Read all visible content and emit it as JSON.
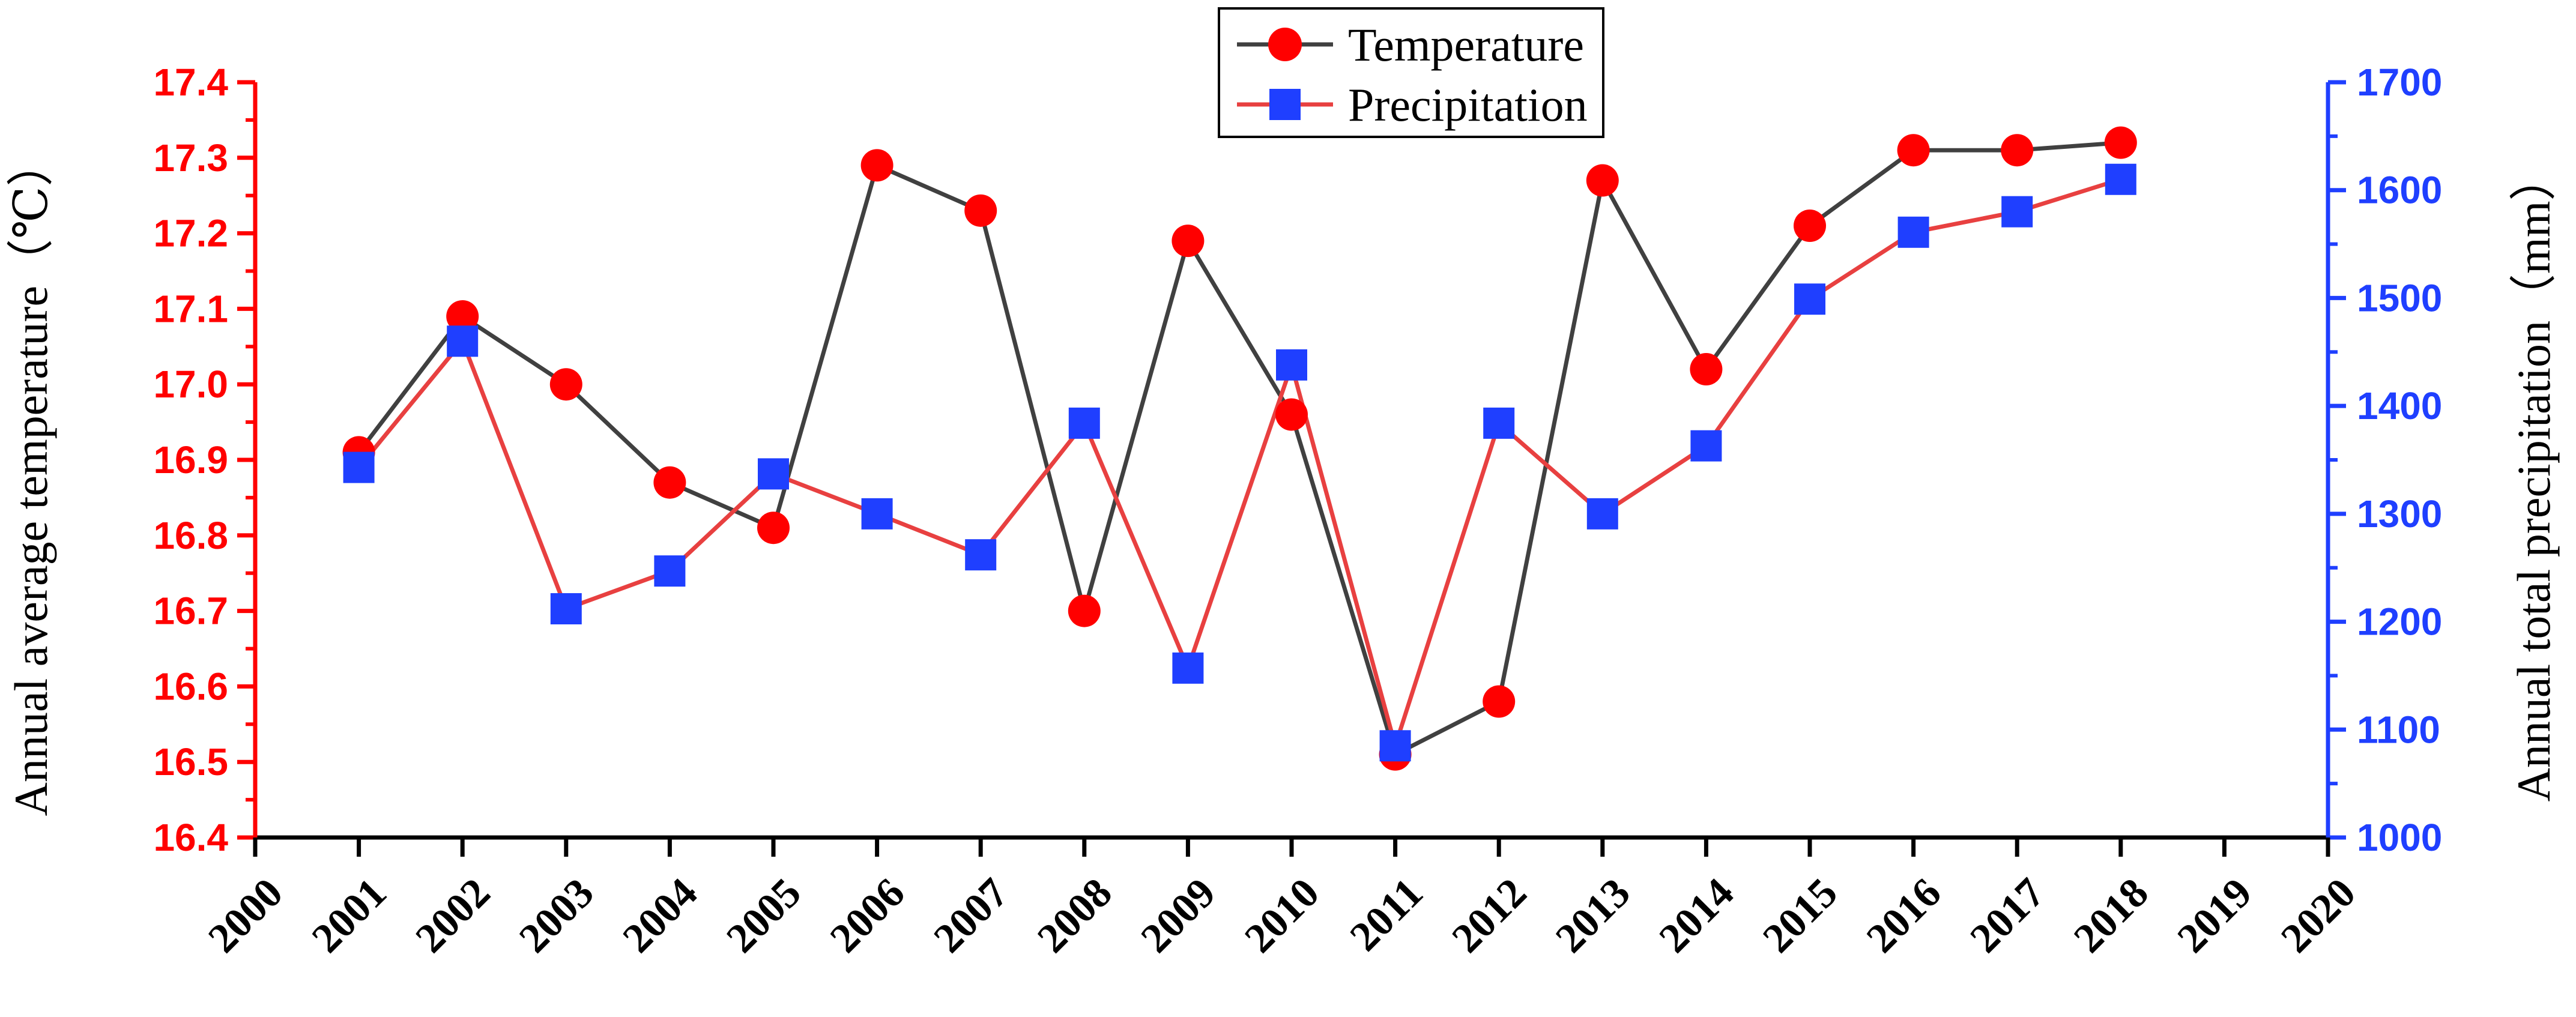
{
  "chart_data": {
    "type": "line",
    "x": [
      2001,
      2002,
      2003,
      2004,
      2005,
      2006,
      2007,
      2008,
      2009,
      2010,
      2011,
      2012,
      2013,
      2014,
      2015,
      2016,
      2017,
      2018
    ],
    "xlim": [
      2000,
      2020
    ],
    "x_ticks": [
      "2000",
      "2001",
      "2002",
      "2003",
      "2004",
      "2005",
      "2006",
      "2007",
      "2008",
      "2009",
      "2010",
      "2011",
      "2012",
      "2013",
      "2014",
      "2015",
      "2016",
      "2017",
      "2018",
      "2019",
      "2020"
    ],
    "series": [
      {
        "name": "Temperature",
        "axis": "left",
        "marker": "circle",
        "line_color": "#404040",
        "marker_color": "#ff0000",
        "values": [
          16.91,
          17.09,
          17.0,
          16.87,
          16.81,
          17.29,
          17.23,
          16.7,
          17.19,
          16.96,
          16.51,
          16.58,
          17.27,
          17.02,
          17.21,
          17.31,
          17.31,
          17.32
        ]
      },
      {
        "name": "Precipitation",
        "axis": "right",
        "marker": "square",
        "line_color": "#e84040",
        "marker_color": "#1f3fff",
        "values": [
          1343,
          1460,
          1212,
          1247,
          1337,
          1300,
          1262,
          1384,
          1157,
          1438,
          1085,
          1384,
          1300,
          1363,
          1499,
          1561,
          1580,
          1610
        ]
      }
    ],
    "y_left": {
      "label": "Annual average temperature（℃）",
      "ylim": [
        16.4,
        17.4
      ],
      "ticks": [
        "16.4",
        "16.5",
        "16.6",
        "16.7",
        "16.8",
        "16.9",
        "17.0",
        "17.1",
        "17.2",
        "17.3",
        "17.4"
      ],
      "color": "#ff0000"
    },
    "y_right": {
      "label": "Annual total precipitation（mm）",
      "ylim": [
        1000,
        1700
      ],
      "ticks": [
        "1000",
        "1100",
        "1200",
        "1300",
        "1400",
        "1500",
        "1600",
        "1700"
      ],
      "color": "#1f3fff"
    },
    "legend": {
      "position": "top-center",
      "entries": [
        "Temperature",
        "Precipitation"
      ]
    },
    "title": ""
  }
}
